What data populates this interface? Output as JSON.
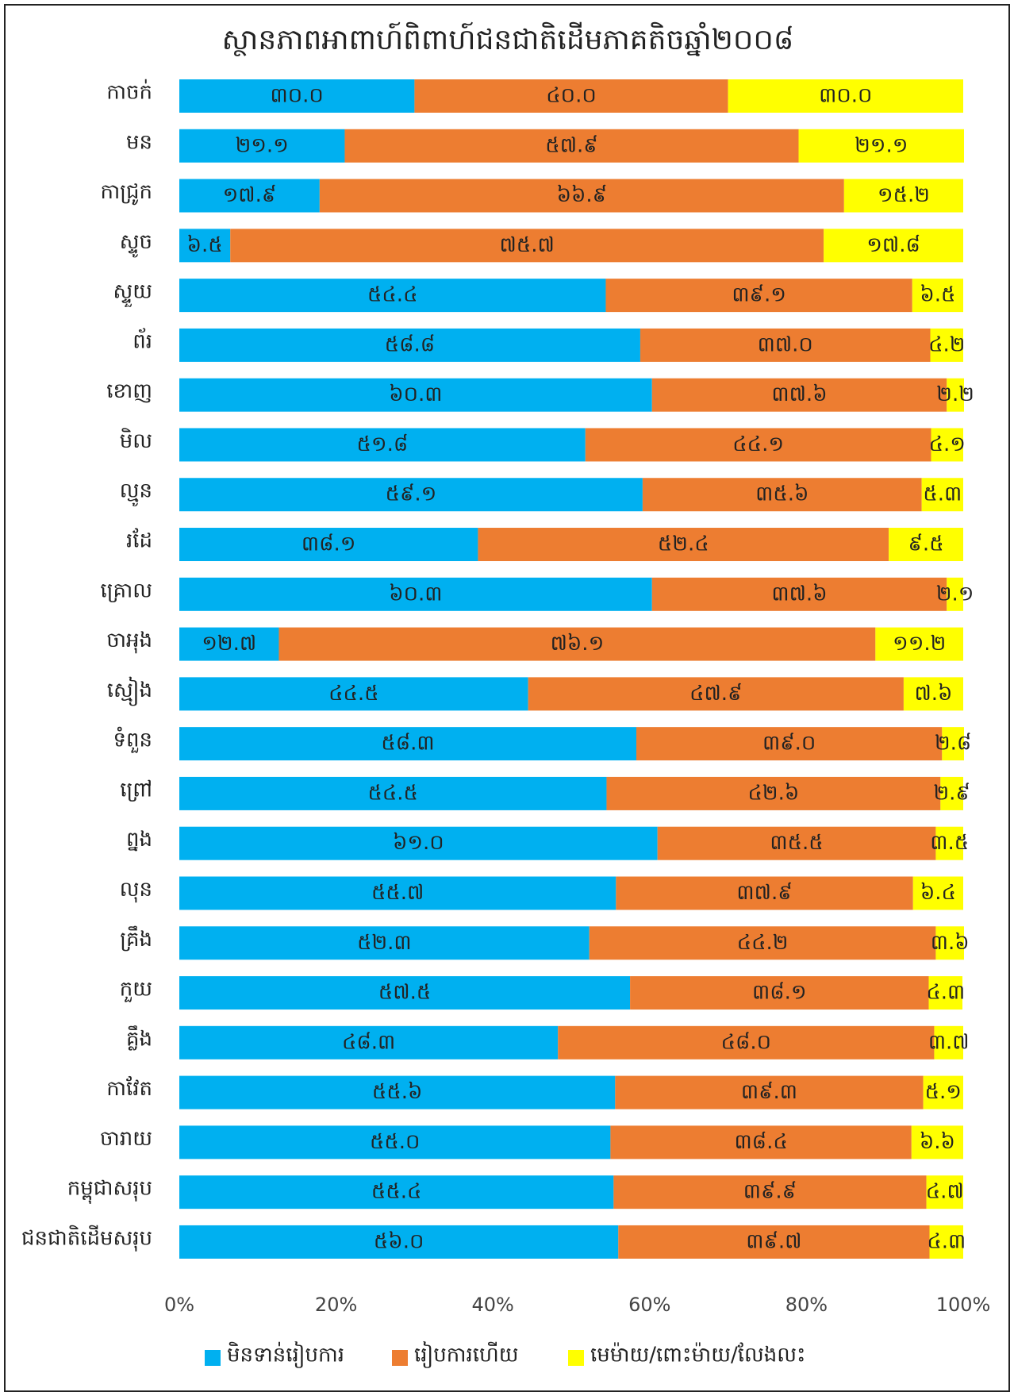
{
  "chart_data": {
    "type": "stacked_barh",
    "title": "ស្ថានភាពអាពាហ៍ពិពាហ៍ជនជាតិដើមភាគតិចឆ្នាំ២០០៨",
    "categories": [
      "កាចក់",
      "មន",
      "កាជ្រូក",
      "ស្ទូច",
      "ស្ទួយ",
      "ព័រ",
      "ខោញ",
      "មិល",
      "ល្មូន",
      "រដែ",
      "គ្រោល",
      "ចាអុង",
      "ស្មៀង",
      "ទំពួន",
      "ព្រៅ",
      "ព្នង",
      "លុន",
      "គ្រឹង",
      "កួយ",
      "គ្លឹង",
      "កាវែត",
      "ចារាយ",
      "កម្ពុជាសរុប",
      "ជនជាតិដើមសរុប"
    ],
    "series": [
      {
        "name": "មិនទាន់រៀបការ",
        "color": "#00B0F0",
        "values": [
          30.0,
          21.1,
          17.9,
          6.5,
          54.4,
          58.8,
          60.3,
          51.8,
          59.1,
          38.1,
          60.3,
          12.7,
          44.5,
          58.3,
          54.5,
          61.0,
          55.7,
          52.3,
          57.5,
          48.3,
          55.6,
          55.0,
          55.4,
          56.0
        ],
        "value_labels": [
          "៣០.០",
          "២១.១",
          "១៧.៩",
          "៦.៥",
          "៥៤.៤",
          "៥៨.៨",
          "៦០.៣",
          "៥១.៨",
          "៥៩.១",
          "៣៨.១",
          "៦០.៣",
          "១២.៧",
          "៤៤.៥",
          "៥៨.៣",
          "៥៤.៥",
          "៦១.០",
          "៥៥.៧",
          "៥២.៣",
          "៥៧.៥",
          "៤៨.៣",
          "៥៥.៦",
          "៥៥.០",
          "៥៥.៤",
          "៥៦.០"
        ]
      },
      {
        "name": "រៀបការហើយ",
        "color": "#ED7D31",
        "values": [
          40.0,
          57.9,
          66.9,
          75.7,
          39.1,
          37.0,
          37.6,
          44.1,
          35.6,
          52.4,
          37.6,
          76.1,
          47.9,
          39.0,
          42.6,
          35.5,
          37.9,
          44.2,
          38.1,
          48.0,
          39.3,
          38.4,
          39.9,
          39.7
        ],
        "value_labels": [
          "៤០.០",
          "៥៧.៩",
          "៦៦.៩",
          "៧៥.៧",
          "៣៩.១",
          "៣៧.០",
          "៣៧.៦",
          "៤៤.១",
          "៣៥.៦",
          "៥២.៤",
          "៣៧.៦",
          "៧៦.១",
          "៤៧.៩",
          "៣៩.០",
          "៤២.៦",
          "៣៥.៥",
          "៣៧.៩",
          "៤៤.២",
          "៣៨.១",
          "៤៨.០",
          "៣៩.៣",
          "៣៨.៤",
          "៣៩.៩",
          "៣៩.៧"
        ]
      },
      {
        "name": "មេម៉ាយ/ពោះម៉ាយ/លែងលះ",
        "color": "#FFFF00",
        "values": [
          30.0,
          21.1,
          15.2,
          17.8,
          6.5,
          4.2,
          2.2,
          4.1,
          5.3,
          9.5,
          2.1,
          11.2,
          7.6,
          2.8,
          2.9,
          3.5,
          6.4,
          3.6,
          4.3,
          3.7,
          5.1,
          6.6,
          4.7,
          4.3
        ],
        "value_labels": [
          "៣០.០",
          "២១.១",
          "១៥.២",
          "១៧.៨",
          "៦.៥",
          "៤.២",
          "២.២",
          "៤.១",
          "៥.៣",
          "៩.៥",
          "២.១",
          "១១.២",
          "៧.៦",
          "២.៨",
          "២.៩",
          "៣.៥",
          "៦.៤",
          "៣.៦",
          "៤.៣",
          "៣.៧",
          "៥.១",
          "៦.៦",
          "៤.៧",
          "៤.៣"
        ]
      }
    ],
    "xlim": [
      0,
      100
    ],
    "xticks": [
      {
        "value": 0,
        "label": "0%"
      },
      {
        "value": 20,
        "label": "20%"
      },
      {
        "value": 40,
        "label": "40%"
      },
      {
        "value": 60,
        "label": "60%"
      },
      {
        "value": 80,
        "label": "80%"
      },
      {
        "value": 100,
        "label": "100%"
      }
    ],
    "grid": false,
    "legend": "bottom"
  }
}
